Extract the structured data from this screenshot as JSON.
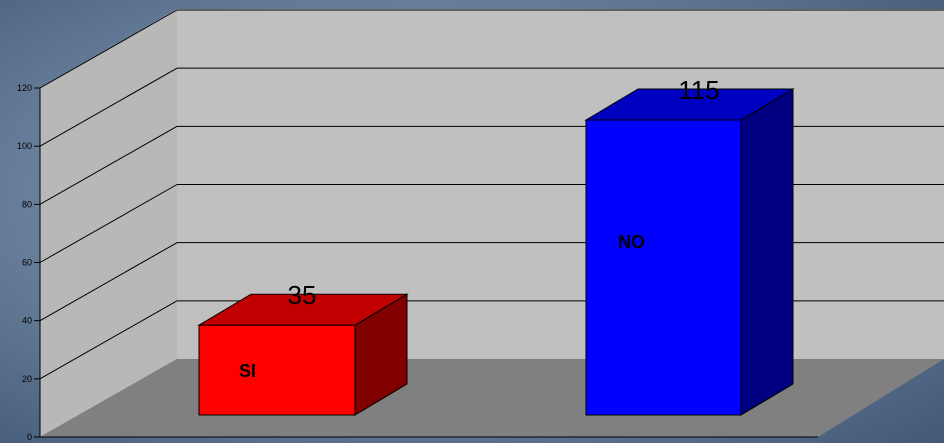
{
  "chart_data": {
    "type": "bar",
    "title": "",
    "xlabel": "",
    "ylabel": "",
    "categories": [
      "SI",
      "NO"
    ],
    "values": [
      35,
      115
    ],
    "data_labels": [
      "35",
      "115"
    ],
    "ylim": [
      0,
      120
    ],
    "yticks": [
      0,
      20,
      40,
      60,
      80,
      100,
      120
    ],
    "ytick_labels": [
      "0",
      "20",
      "40",
      "60",
      "80",
      "100",
      "120"
    ],
    "grid": true,
    "legend": "none",
    "style": "3d-column",
    "colors": {
      "SI_front": "#ff0000",
      "SI_side": "#800000",
      "SI_top": "#c00000",
      "NO_front": "#0000ff",
      "NO_side": "#000080",
      "NO_top": "#0000c0",
      "back_wall": "#c0c0c0",
      "side_wall": "#b8b8b8",
      "floor": "#808080",
      "background": "#5f7591"
    }
  }
}
